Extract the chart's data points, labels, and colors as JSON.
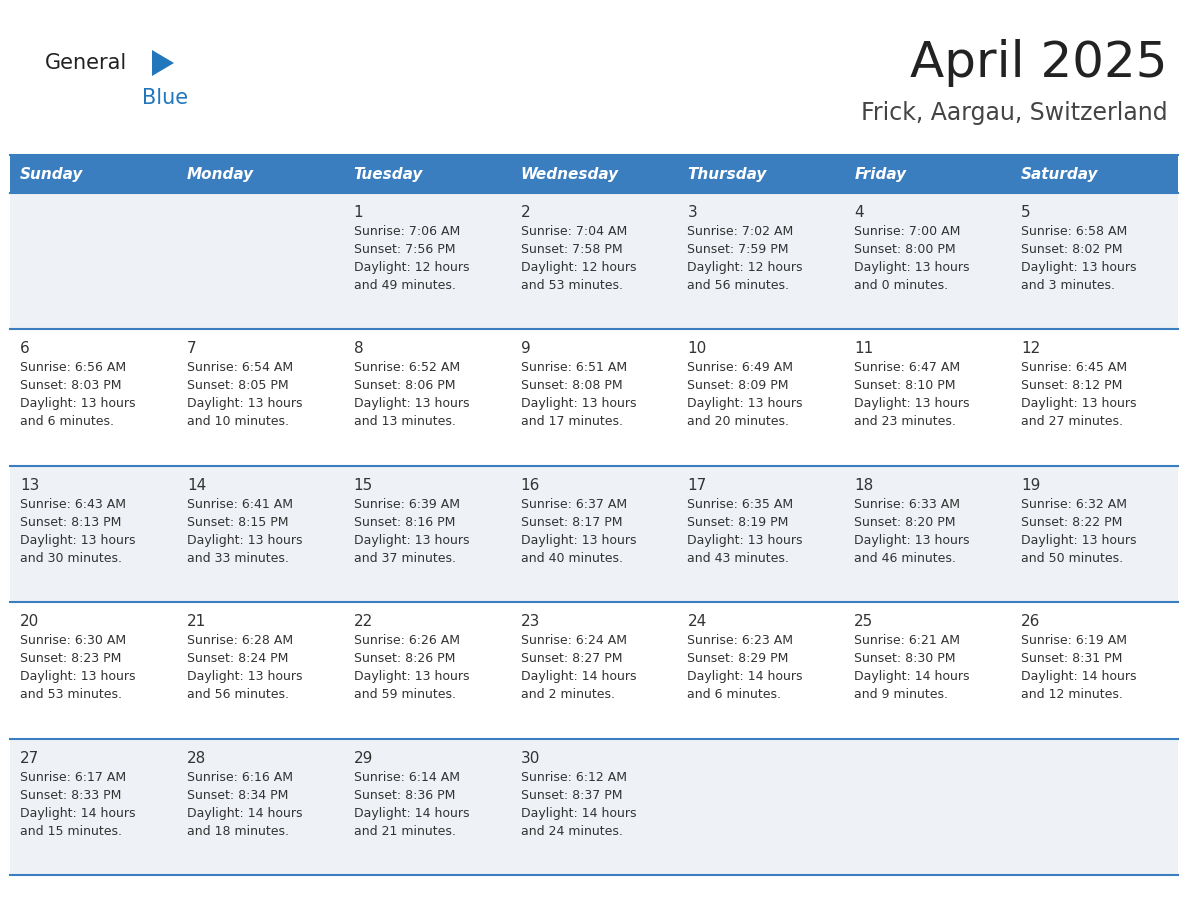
{
  "title": "April 2025",
  "subtitle": "Frick, Aargau, Switzerland",
  "header_bg": "#3a7ebf",
  "header_text_color": "#ffffff",
  "day_names": [
    "Sunday",
    "Monday",
    "Tuesday",
    "Wednesday",
    "Thursday",
    "Friday",
    "Saturday"
  ],
  "odd_row_bg": "#eef2f7",
  "even_row_bg": "#ffffff",
  "grid_line_color": "#3a7ebf",
  "cell_text_color": "#333333",
  "logo_text_color": "#222222",
  "logo_blue_color": "#2176bc",
  "title_color": "#222222",
  "subtitle_color": "#444444",
  "days": [
    {
      "day": 1,
      "col": 2,
      "row": 0,
      "sunrise": "7:06 AM",
      "sunset": "7:56 PM",
      "daylight": "12 hours and 49 minutes."
    },
    {
      "day": 2,
      "col": 3,
      "row": 0,
      "sunrise": "7:04 AM",
      "sunset": "7:58 PM",
      "daylight": "12 hours and 53 minutes."
    },
    {
      "day": 3,
      "col": 4,
      "row": 0,
      "sunrise": "7:02 AM",
      "sunset": "7:59 PM",
      "daylight": "12 hours and 56 minutes."
    },
    {
      "day": 4,
      "col": 5,
      "row": 0,
      "sunrise": "7:00 AM",
      "sunset": "8:00 PM",
      "daylight": "13 hours and 0 minutes."
    },
    {
      "day": 5,
      "col": 6,
      "row": 0,
      "sunrise": "6:58 AM",
      "sunset": "8:02 PM",
      "daylight": "13 hours and 3 minutes."
    },
    {
      "day": 6,
      "col": 0,
      "row": 1,
      "sunrise": "6:56 AM",
      "sunset": "8:03 PM",
      "daylight": "13 hours and 6 minutes."
    },
    {
      "day": 7,
      "col": 1,
      "row": 1,
      "sunrise": "6:54 AM",
      "sunset": "8:05 PM",
      "daylight": "13 hours and 10 minutes."
    },
    {
      "day": 8,
      "col": 2,
      "row": 1,
      "sunrise": "6:52 AM",
      "sunset": "8:06 PM",
      "daylight": "13 hours and 13 minutes."
    },
    {
      "day": 9,
      "col": 3,
      "row": 1,
      "sunrise": "6:51 AM",
      "sunset": "8:08 PM",
      "daylight": "13 hours and 17 minutes."
    },
    {
      "day": 10,
      "col": 4,
      "row": 1,
      "sunrise": "6:49 AM",
      "sunset": "8:09 PM",
      "daylight": "13 hours and 20 minutes."
    },
    {
      "day": 11,
      "col": 5,
      "row": 1,
      "sunrise": "6:47 AM",
      "sunset": "8:10 PM",
      "daylight": "13 hours and 23 minutes."
    },
    {
      "day": 12,
      "col": 6,
      "row": 1,
      "sunrise": "6:45 AM",
      "sunset": "8:12 PM",
      "daylight": "13 hours and 27 minutes."
    },
    {
      "day": 13,
      "col": 0,
      "row": 2,
      "sunrise": "6:43 AM",
      "sunset": "8:13 PM",
      "daylight": "13 hours and 30 minutes."
    },
    {
      "day": 14,
      "col": 1,
      "row": 2,
      "sunrise": "6:41 AM",
      "sunset": "8:15 PM",
      "daylight": "13 hours and 33 minutes."
    },
    {
      "day": 15,
      "col": 2,
      "row": 2,
      "sunrise": "6:39 AM",
      "sunset": "8:16 PM",
      "daylight": "13 hours and 37 minutes."
    },
    {
      "day": 16,
      "col": 3,
      "row": 2,
      "sunrise": "6:37 AM",
      "sunset": "8:17 PM",
      "daylight": "13 hours and 40 minutes."
    },
    {
      "day": 17,
      "col": 4,
      "row": 2,
      "sunrise": "6:35 AM",
      "sunset": "8:19 PM",
      "daylight": "13 hours and 43 minutes."
    },
    {
      "day": 18,
      "col": 5,
      "row": 2,
      "sunrise": "6:33 AM",
      "sunset": "8:20 PM",
      "daylight": "13 hours and 46 minutes."
    },
    {
      "day": 19,
      "col": 6,
      "row": 2,
      "sunrise": "6:32 AM",
      "sunset": "8:22 PM",
      "daylight": "13 hours and 50 minutes."
    },
    {
      "day": 20,
      "col": 0,
      "row": 3,
      "sunrise": "6:30 AM",
      "sunset": "8:23 PM",
      "daylight": "13 hours and 53 minutes."
    },
    {
      "day": 21,
      "col": 1,
      "row": 3,
      "sunrise": "6:28 AM",
      "sunset": "8:24 PM",
      "daylight": "13 hours and 56 minutes."
    },
    {
      "day": 22,
      "col": 2,
      "row": 3,
      "sunrise": "6:26 AM",
      "sunset": "8:26 PM",
      "daylight": "13 hours and 59 minutes."
    },
    {
      "day": 23,
      "col": 3,
      "row": 3,
      "sunrise": "6:24 AM",
      "sunset": "8:27 PM",
      "daylight": "14 hours and 2 minutes."
    },
    {
      "day": 24,
      "col": 4,
      "row": 3,
      "sunrise": "6:23 AM",
      "sunset": "8:29 PM",
      "daylight": "14 hours and 6 minutes."
    },
    {
      "day": 25,
      "col": 5,
      "row": 3,
      "sunrise": "6:21 AM",
      "sunset": "8:30 PM",
      "daylight": "14 hours and 9 minutes."
    },
    {
      "day": 26,
      "col": 6,
      "row": 3,
      "sunrise": "6:19 AM",
      "sunset": "8:31 PM",
      "daylight": "14 hours and 12 minutes."
    },
    {
      "day": 27,
      "col": 0,
      "row": 4,
      "sunrise": "6:17 AM",
      "sunset": "8:33 PM",
      "daylight": "14 hours and 15 minutes."
    },
    {
      "day": 28,
      "col": 1,
      "row": 4,
      "sunrise": "6:16 AM",
      "sunset": "8:34 PM",
      "daylight": "14 hours and 18 minutes."
    },
    {
      "day": 29,
      "col": 2,
      "row": 4,
      "sunrise": "6:14 AM",
      "sunset": "8:36 PM",
      "daylight": "14 hours and 21 minutes."
    },
    {
      "day": 30,
      "col": 3,
      "row": 4,
      "sunrise": "6:12 AM",
      "sunset": "8:37 PM",
      "daylight": "14 hours and 24 minutes."
    }
  ]
}
